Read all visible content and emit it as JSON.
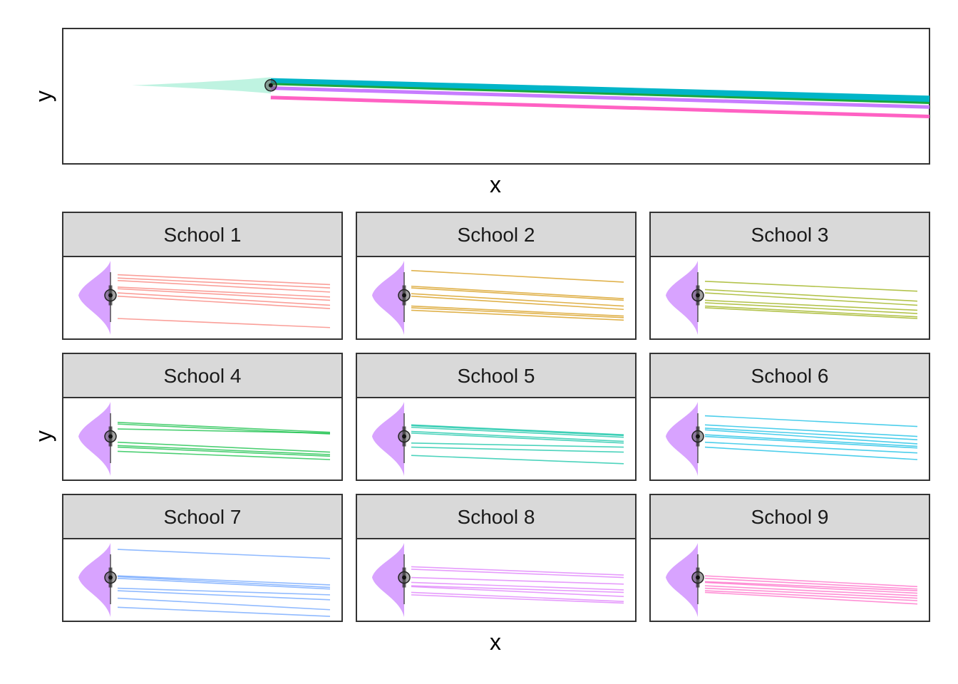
{
  "chart_data": [
    {
      "type": "line",
      "panel": "top",
      "xlabel": "x",
      "ylabel": "y",
      "xlim": [
        0,
        1
      ],
      "ylim": [
        0,
        1
      ],
      "grid": false,
      "legend": "none",
      "density": {
        "color": "#b8f2de",
        "x_start": 0.08,
        "x_tip": 0.24,
        "y": 0.58,
        "height": 0.12
      },
      "point": {
        "x": 0.24,
        "y": 0.58
      },
      "series": [
        {
          "color": "#00b5c8",
          "x": [
            0.24,
            1.0
          ],
          "y": [
            0.61,
            0.48
          ],
          "width": 9
        },
        {
          "color": "#19a83f",
          "x": [
            0.24,
            1.0
          ],
          "y": [
            0.59,
            0.45
          ],
          "width": 3
        },
        {
          "color": "#c77cff",
          "x": [
            0.24,
            1.0
          ],
          "y": [
            0.56,
            0.42
          ],
          "width": 5
        },
        {
          "color": "#ff61c3",
          "x": [
            0.24,
            1.0
          ],
          "y": [
            0.49,
            0.35
          ],
          "width": 5
        }
      ]
    },
    {
      "type": "line",
      "panel": "facets",
      "xlabel": "x",
      "ylabel": "y",
      "xlim": [
        0,
        1
      ],
      "ylim": [
        0,
        1
      ],
      "grid": false,
      "legend": "none",
      "density_color": "#c77cff",
      "facets": [
        {
          "label": "School 1",
          "color": "#f8766d",
          "lines": [
            [
              0.78,
              0.66
            ],
            [
              0.74,
              0.62
            ],
            [
              0.71,
              0.57
            ],
            [
              0.63,
              0.51
            ],
            [
              0.61,
              0.47
            ],
            [
              0.56,
              0.41
            ],
            [
              0.52,
              0.37
            ],
            [
              0.25,
              0.14
            ]
          ]
        },
        {
          "label": "School 2",
          "color": "#d39200",
          "lines": [
            [
              0.83,
              0.69
            ],
            [
              0.64,
              0.49
            ],
            [
              0.62,
              0.47
            ],
            [
              0.55,
              0.4
            ],
            [
              0.52,
              0.36
            ],
            [
              0.4,
              0.28
            ],
            [
              0.38,
              0.26
            ],
            [
              0.35,
              0.23
            ]
          ]
        },
        {
          "label": "School 3",
          "color": "#93aa00",
          "lines": [
            [
              0.7,
              0.58
            ],
            [
              0.6,
              0.46
            ],
            [
              0.56,
              0.41
            ],
            [
              0.47,
              0.35
            ],
            [
              0.44,
              0.31
            ],
            [
              0.4,
              0.27
            ],
            [
              0.38,
              0.25
            ]
          ]
        },
        {
          "label": "School 4",
          "color": "#00ba38",
          "lines": [
            [
              0.7,
              0.58
            ],
            [
              0.68,
              0.56
            ],
            [
              0.62,
              0.57
            ],
            [
              0.46,
              0.34
            ],
            [
              0.42,
              0.31
            ],
            [
              0.4,
              0.29
            ],
            [
              0.35,
              0.25
            ]
          ]
        },
        {
          "label": "School 5",
          "color": "#00c19f",
          "lines": [
            [
              0.67,
              0.55
            ],
            [
              0.66,
              0.54
            ],
            [
              0.64,
              0.52
            ],
            [
              0.59,
              0.47
            ],
            [
              0.57,
              0.45
            ],
            [
              0.45,
              0.4
            ],
            [
              0.4,
              0.34
            ],
            [
              0.3,
              0.2
            ]
          ]
        },
        {
          "label": "School 6",
          "color": "#00b9e3",
          "lines": [
            [
              0.78,
              0.65
            ],
            [
              0.67,
              0.53
            ],
            [
              0.63,
              0.49
            ],
            [
              0.61,
              0.44
            ],
            [
              0.55,
              0.41
            ],
            [
              0.53,
              0.39
            ],
            [
              0.46,
              0.33
            ],
            [
              0.4,
              0.25
            ]
          ]
        },
        {
          "label": "School 7",
          "color": "#619cff",
          "lines": [
            [
              0.87,
              0.76
            ],
            [
              0.55,
              0.44
            ],
            [
              0.54,
              0.41
            ],
            [
              0.52,
              0.39
            ],
            [
              0.4,
              0.32
            ],
            [
              0.37,
              0.26
            ],
            [
              0.28,
              0.14
            ],
            [
              0.17,
              0.06
            ]
          ]
        },
        {
          "label": "School 8",
          "color": "#db72fb",
          "lines": [
            [
              0.66,
              0.56
            ],
            [
              0.63,
              0.53
            ],
            [
              0.53,
              0.45
            ],
            [
              0.47,
              0.38
            ],
            [
              0.43,
              0.35
            ],
            [
              0.42,
              0.3
            ],
            [
              0.35,
              0.24
            ],
            [
              0.32,
              0.22
            ]
          ]
        },
        {
          "label": "School 9",
          "color": "#ff61c3",
          "lines": [
            [
              0.55,
              0.42
            ],
            [
              0.52,
              0.39
            ],
            [
              0.48,
              0.37
            ],
            [
              0.47,
              0.34
            ],
            [
              0.43,
              0.31
            ],
            [
              0.4,
              0.28
            ],
            [
              0.37,
              0.25
            ],
            [
              0.35,
              0.21
            ]
          ]
        }
      ]
    }
  ]
}
